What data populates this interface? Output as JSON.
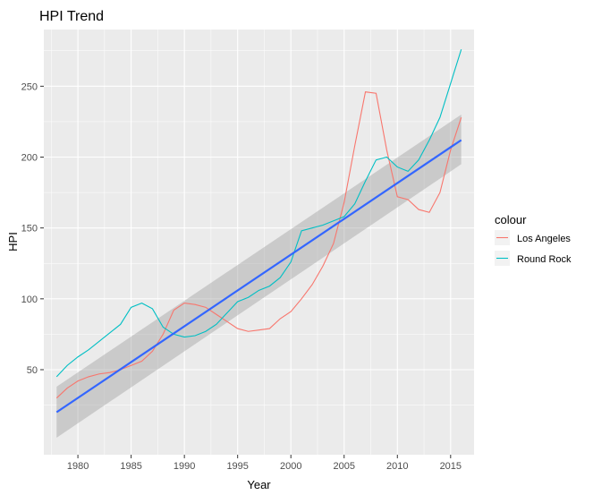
{
  "chart_data": {
    "type": "line",
    "title": "HPI Trend",
    "xlabel": "Year",
    "ylabel": "HPI",
    "xlim": [
      1976.8,
      2017.2
    ],
    "ylim": [
      -10,
      290
    ],
    "x_ticks": [
      1980,
      1985,
      1990,
      1995,
      2000,
      2005,
      2010,
      2015
    ],
    "y_ticks": [
      50,
      100,
      150,
      200,
      250
    ],
    "grid": true,
    "legend": {
      "title": "colour",
      "position": "right"
    },
    "series": [
      {
        "name": "Los Angeles",
        "color": "#F8766D",
        "x": [
          1978,
          1979,
          1980,
          1981,
          1982,
          1983,
          1984,
          1985,
          1986,
          1987,
          1988,
          1989,
          1990,
          1991,
          1992,
          1993,
          1994,
          1995,
          1996,
          1997,
          1998,
          1999,
          2000,
          2001,
          2002,
          2003,
          2004,
          2005,
          2006,
          2007,
          2008,
          2009,
          2010,
          2011,
          2012,
          2013,
          2014,
          2015,
          2016
        ],
        "values": [
          30,
          37,
          42,
          45,
          47,
          48,
          50,
          53,
          56,
          63,
          75,
          92,
          97,
          96,
          94,
          89,
          84,
          79,
          77,
          78,
          79,
          86,
          91,
          100,
          110,
          123,
          139,
          168,
          208,
          246,
          245,
          205,
          172,
          170,
          163,
          161,
          175,
          205,
          228
        ]
      },
      {
        "name": "Round Rock",
        "color": "#00BFC4",
        "x": [
          1978,
          1979,
          1980,
          1981,
          1982,
          1983,
          1984,
          1985,
          1986,
          1987,
          1988,
          1989,
          1990,
          1991,
          1992,
          1993,
          1994,
          1995,
          1996,
          1997,
          1998,
          1999,
          2000,
          2001,
          2002,
          2003,
          2004,
          2005,
          2006,
          2007,
          2008,
          2009,
          2010,
          2011,
          2012,
          2013,
          2014,
          2015,
          2016
        ],
        "values": [
          45,
          53,
          59,
          64,
          70,
          76,
          82,
          94,
          97,
          93,
          80,
          75,
          73,
          74,
          77,
          82,
          90,
          98,
          101,
          106,
          109,
          115,
          126,
          148,
          150,
          152,
          155,
          158,
          167,
          183,
          198,
          200,
          193,
          190,
          198,
          212,
          228,
          252,
          276
        ]
      }
    ],
    "trend": {
      "method": "linear",
      "color": "#3366FF",
      "x": [
        1978,
        2016
      ],
      "values": [
        20,
        212
      ],
      "band_lower": [
        2,
        195
      ],
      "band_upper": [
        38,
        230
      ]
    }
  }
}
